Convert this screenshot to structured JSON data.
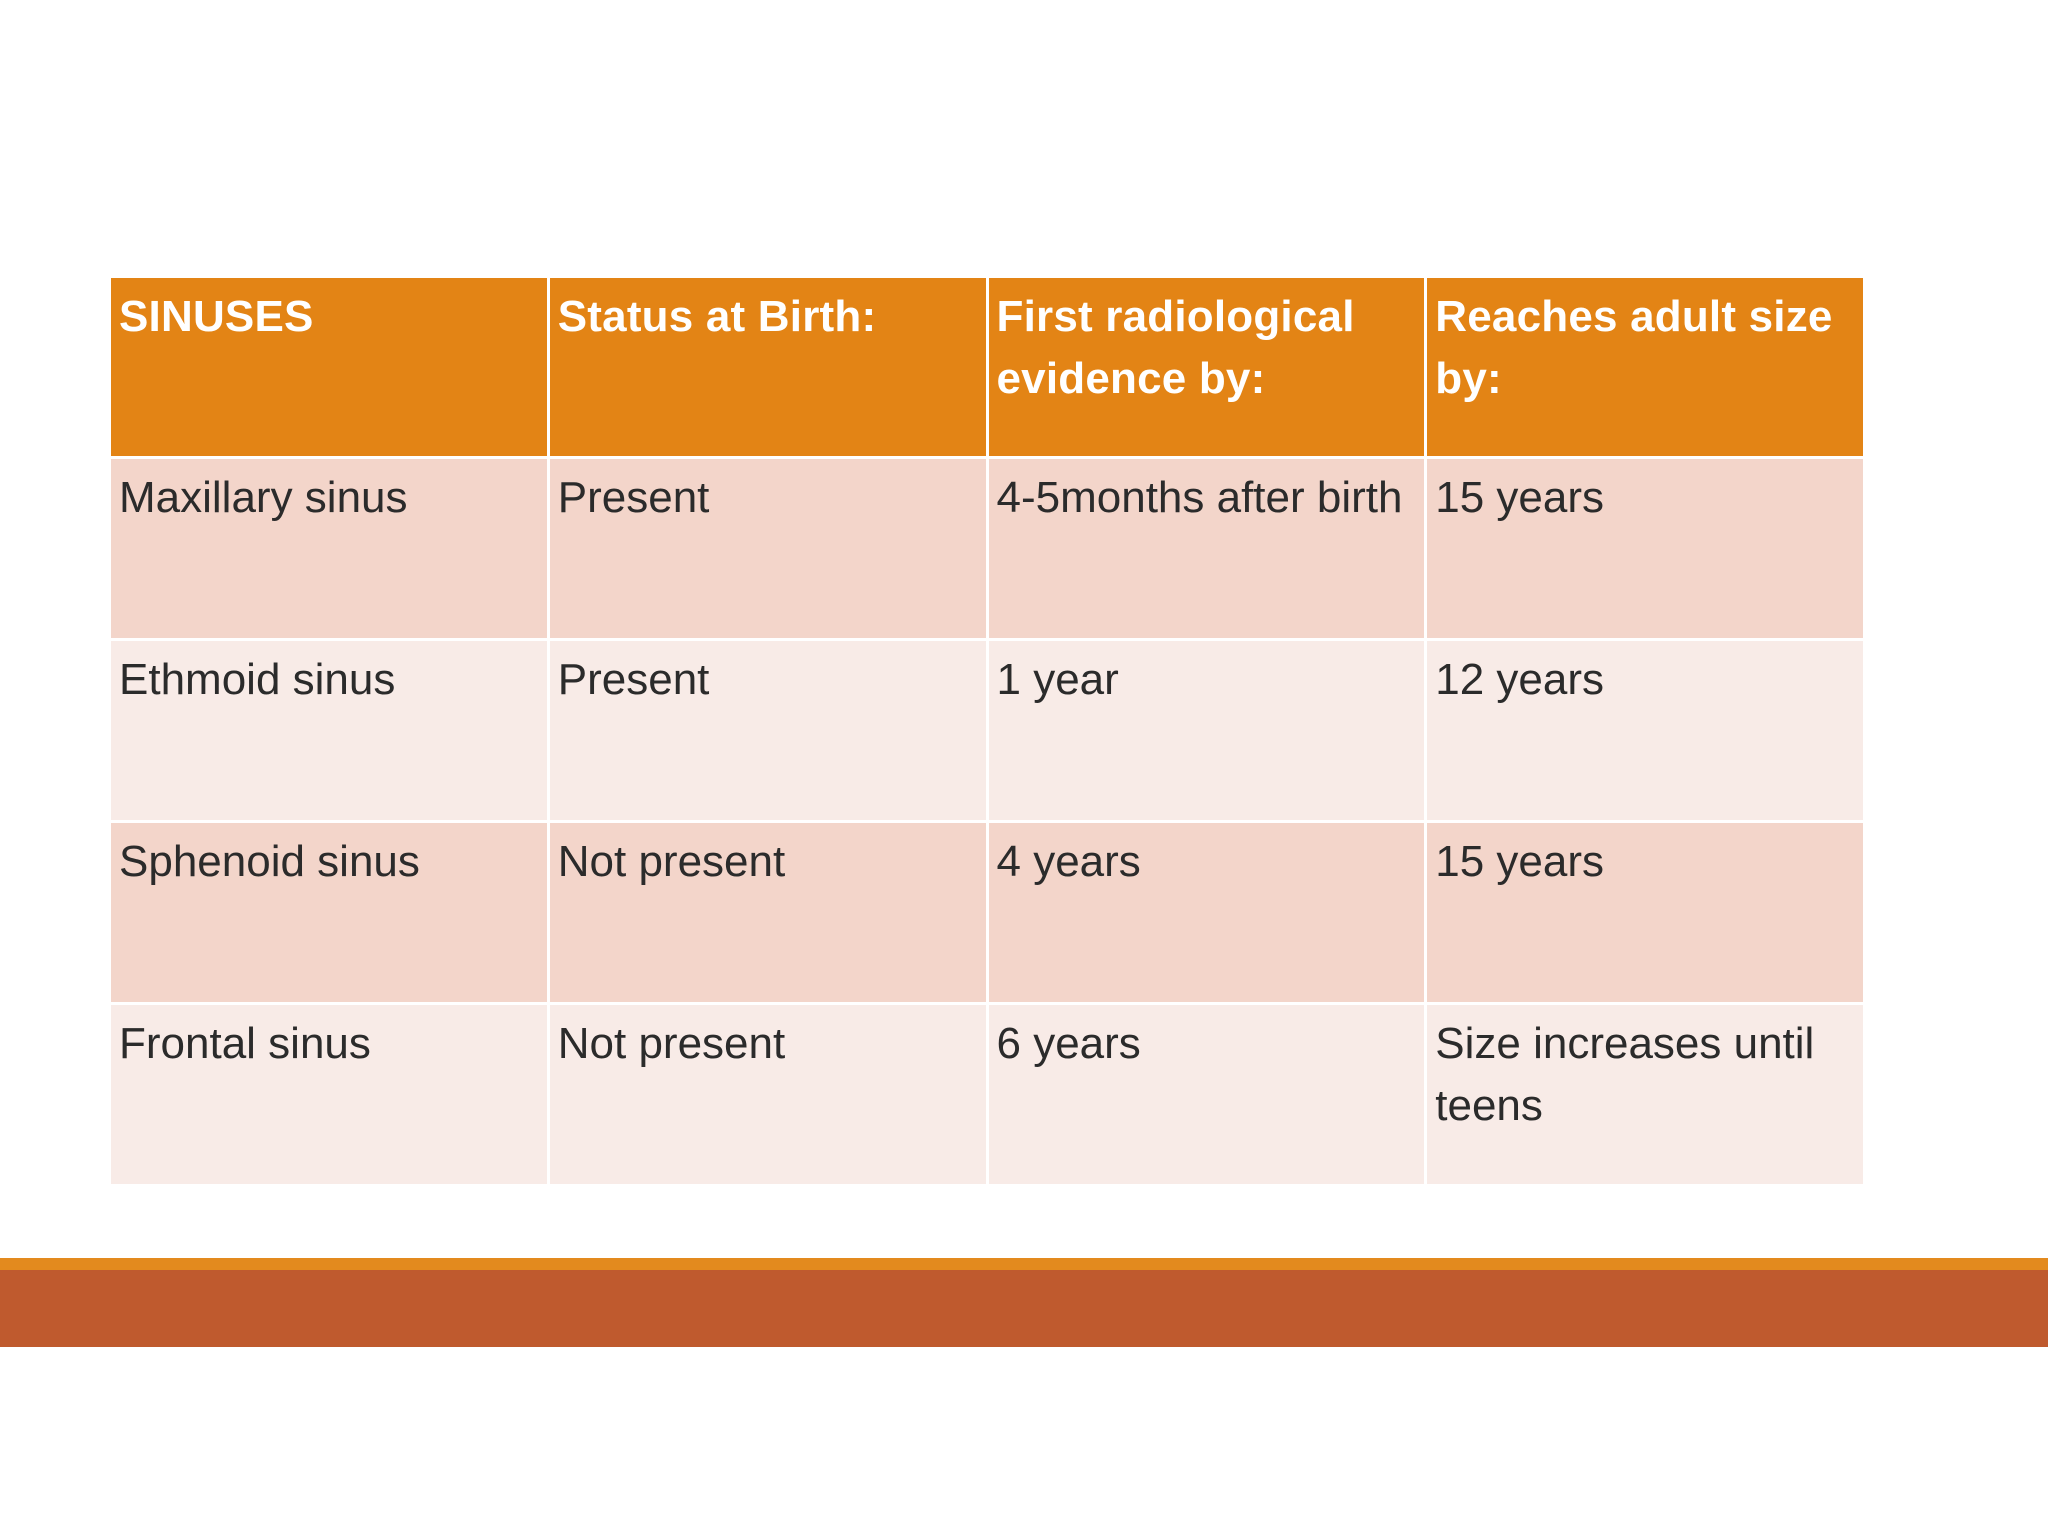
{
  "table": {
    "headers": [
      "SINUSES",
      "Status at Birth:",
      "First radiological evidence by:",
      "Reaches adult size by:"
    ],
    "rows": [
      [
        "Maxillary sinus",
        "Present",
        "4-5months after birth",
        "15 years"
      ],
      [
        "Ethmoid sinus",
        "Present",
        "1 year",
        "12 years"
      ],
      [
        "Sphenoid sinus",
        "Not present",
        "4 years",
        "15 years"
      ],
      [
        "Frontal sinus",
        "Not present",
        "6 years",
        "Size increases until teens"
      ]
    ]
  },
  "colors": {
    "header_bg": "#e38415",
    "row_odd_bg": "#f3d5ca",
    "row_even_bg": "#f8ebe7",
    "footer_accent": "#e38a1e",
    "footer_bar": "#bf5a2e"
  }
}
